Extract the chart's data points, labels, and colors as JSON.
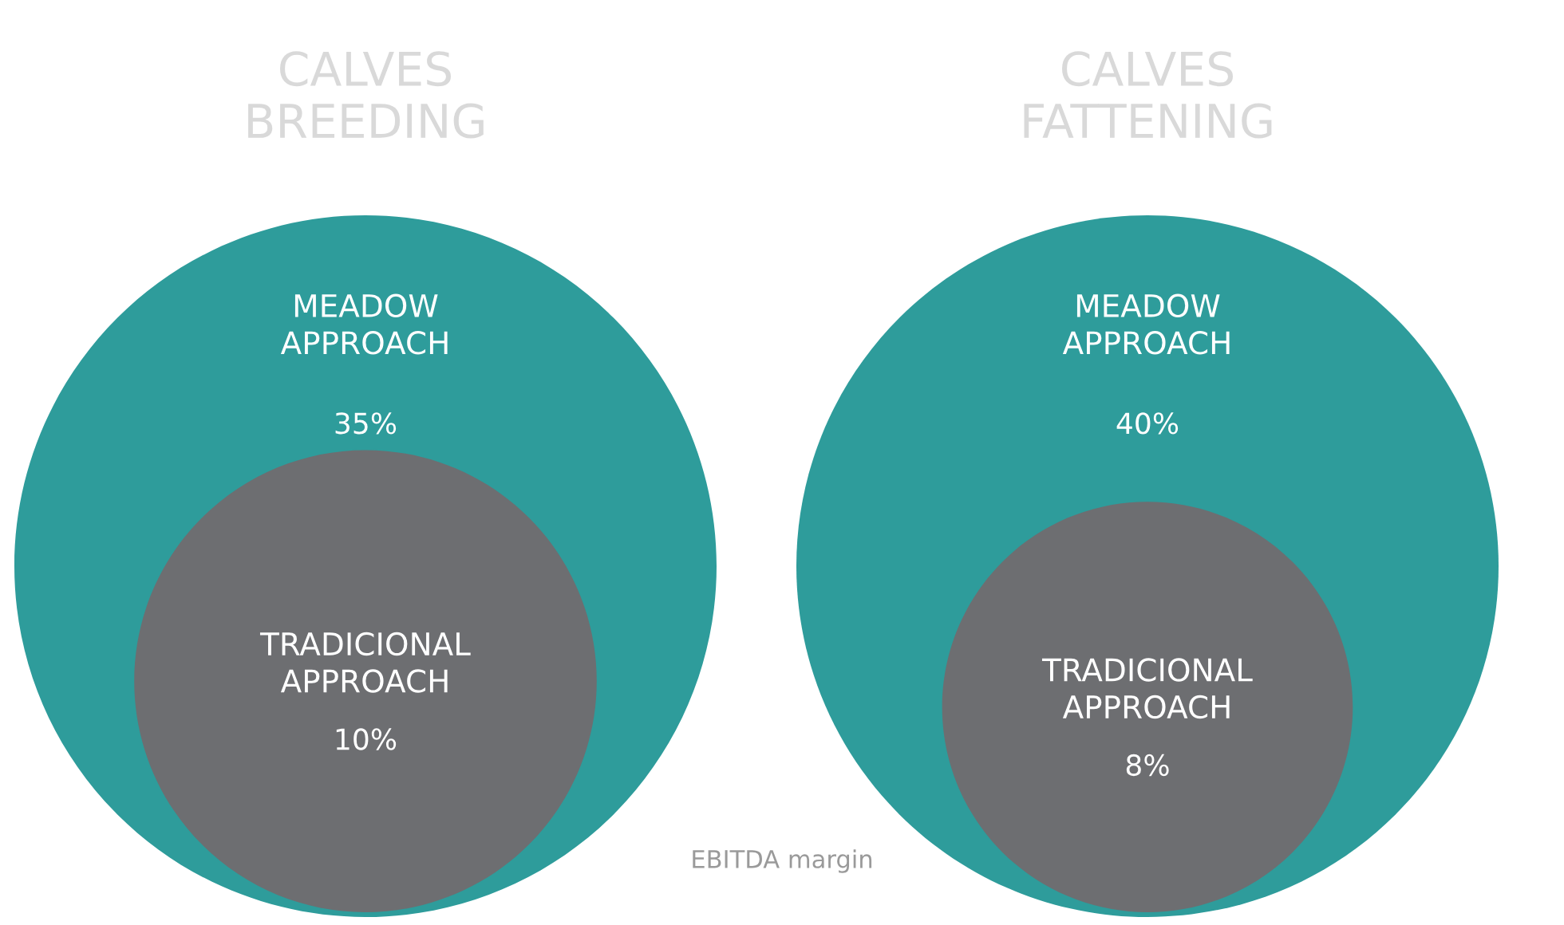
{
  "chart_data": [
    {
      "type": "other",
      "title": "CALVES\nBREEDING",
      "categories": [
        "MEADOW\nAPPROACH",
        "TRADICIONAL\nAPPROACH"
      ],
      "values": [
        35,
        10
      ],
      "value_labels": [
        "35%",
        "10%"
      ],
      "colors": [
        "#2e9c9b",
        "#6d6e71"
      ],
      "annotations": [
        "EBITDA margin"
      ]
    },
    {
      "type": "other",
      "title": "CALVES\nFATTENING",
      "categories": [
        "MEADOW\nAPPROACH",
        "TRADICIONAL\nAPPROACH"
      ],
      "values": [
        40,
        8
      ],
      "value_labels": [
        "40%",
        "8%"
      ],
      "colors": [
        "#2e9c9b",
        "#6d6e71"
      ]
    }
  ]
}
